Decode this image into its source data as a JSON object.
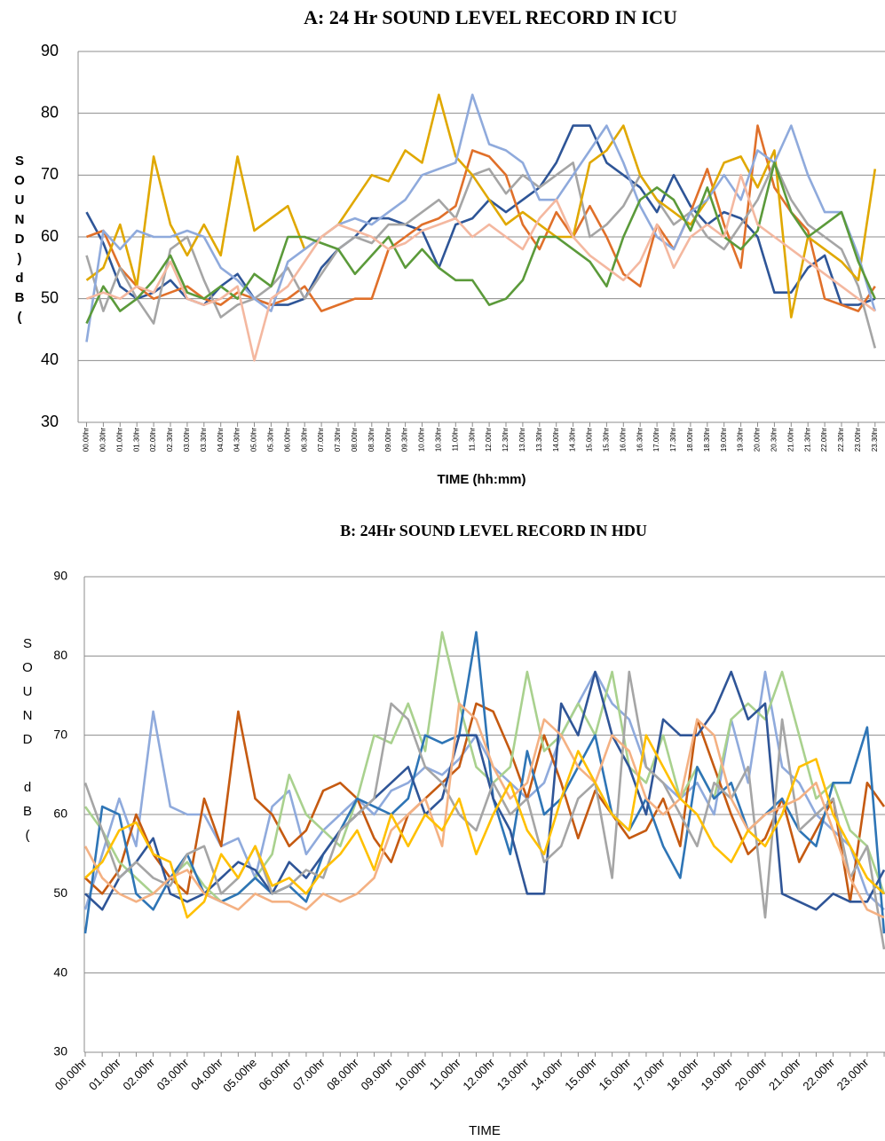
{
  "chart_data": [
    {
      "type": "line",
      "title": "A: 24 Hr  SOUND LEVEL RECORD IN ICU",
      "xlabel": "TIME (hh:mm)",
      "ylabel": "SOUND)dB(",
      "categories": [
        "00.00hr",
        "00.30hr",
        "01.00hr",
        "01.30hr",
        "02.00hr",
        "02.30hr",
        "03.00hr",
        "03.30hr",
        "04.00hr",
        "04.30hr",
        "05.00hr",
        "05.30hr",
        "06.00hr",
        "06.30hr",
        "07.00hr",
        "07.30hr",
        "08.00hr",
        "08.30hr",
        "09.00hr",
        "09.30hr",
        "10.00hr",
        "10.30hr",
        "11.00hr",
        "11.30hr",
        "12.00hr",
        "12.30hr",
        "13.00hr",
        "13.30hr",
        "14.00hr",
        "14.30hr",
        "15.00hr",
        "15.30hr",
        "16.00hr",
        "16.30hr",
        "17.00hr",
        "17.30hr",
        "18.00hr",
        "18.30hr",
        "19.00hr",
        "19.30hr",
        "20.00hr",
        "20.30hr",
        "21.00hr",
        "21.30hr",
        "22.00hr",
        "22.30hr",
        "23.00hr",
        "23.30hr"
      ],
      "ylim": [
        30,
        90
      ],
      "yticks": [
        30,
        40,
        50,
        60,
        70,
        80,
        90
      ],
      "grid": true,
      "series": [
        {
          "color": "#2e5597",
          "values": [
            64,
            59,
            52,
            50,
            51,
            53,
            50,
            49,
            52,
            54,
            50,
            49,
            49,
            50,
            55,
            58,
            60,
            63,
            63,
            62,
            61,
            55,
            62,
            63,
            66,
            64,
            66,
            68,
            72,
            78,
            78,
            72,
            70,
            68,
            64,
            70,
            65,
            62,
            64,
            63,
            60,
            51,
            51,
            55,
            57,
            49,
            49,
            50
          ]
        },
        {
          "color": "#e0702a",
          "values": [
            60,
            61,
            55,
            52,
            50,
            51,
            52,
            50,
            49,
            51,
            50,
            49,
            50,
            52,
            48,
            49,
            50,
            50,
            58,
            60,
            62,
            63,
            65,
            74,
            73,
            70,
            62,
            58,
            64,
            60,
            65,
            60,
            54,
            52,
            62,
            58,
            64,
            71,
            62,
            55,
            78,
            68,
            64,
            61,
            50,
            49,
            48,
            52
          ]
        },
        {
          "color": "#a5a5a5",
          "values": [
            57,
            48,
            55,
            50,
            46,
            58,
            60,
            53,
            47,
            49,
            50,
            52,
            55,
            50,
            54,
            58,
            60,
            59,
            62,
            62,
            64,
            66,
            63,
            70,
            71,
            67,
            70,
            68,
            70,
            72,
            60,
            62,
            65,
            70,
            66,
            62,
            64,
            60,
            58,
            62,
            66,
            72,
            66,
            62,
            60,
            58,
            52,
            42
          ]
        },
        {
          "color": "#e0a800",
          "values": [
            53,
            55,
            62,
            52,
            73,
            62,
            57,
            62,
            57,
            73,
            61,
            63,
            65,
            58,
            60,
            62,
            66,
            70,
            69,
            74,
            72,
            83,
            73,
            70,
            66,
            62,
            64,
            62,
            60,
            60,
            72,
            74,
            78,
            70,
            66,
            64,
            62,
            66,
            72,
            73,
            68,
            74,
            47,
            60,
            58,
            56,
            53,
            71
          ]
        },
        {
          "color": "#8faadc",
          "values": [
            43,
            61,
            58,
            61,
            60,
            60,
            61,
            60,
            55,
            53,
            50,
            48,
            56,
            58,
            60,
            62,
            63,
            62,
            64,
            66,
            70,
            71,
            72,
            83,
            75,
            74,
            72,
            66,
            66,
            70,
            74,
            78,
            72,
            65,
            60,
            58,
            64,
            66,
            70,
            66,
            74,
            72,
            78,
            70,
            64,
            64,
            57,
            48
          ]
        },
        {
          "color": "#5b9a3a",
          "values": [
            46,
            52,
            48,
            50,
            53,
            57,
            51,
            50,
            52,
            50,
            54,
            52,
            60,
            60,
            59,
            58,
            54,
            57,
            60,
            55,
            58,
            55,
            53,
            53,
            49,
            50,
            53,
            60,
            60,
            58,
            56,
            52,
            60,
            66,
            68,
            66,
            61,
            68,
            60,
            58,
            61,
            72,
            64,
            60,
            62,
            64,
            56,
            50
          ]
        },
        {
          "color": "#f4b8a0",
          "values": [
            50,
            51,
            50,
            52,
            51,
            56,
            50,
            49,
            50,
            52,
            40,
            50,
            52,
            56,
            60,
            62,
            61,
            60,
            58,
            59,
            61,
            62,
            63,
            60,
            62,
            60,
            58,
            63,
            66,
            60,
            57,
            55,
            53,
            56,
            62,
            55,
            60,
            62,
            60,
            70,
            62,
            60,
            58,
            56,
            54,
            52,
            50,
            48
          ]
        }
      ]
    },
    {
      "type": "line",
      "title": "B: 24Hr SOUND LEVEL RECORD IN HDU",
      "xlabel": "TIME",
      "ylabel": "SOUND dB(",
      "categories": [
        "00.00hr",
        null,
        "01.00hr",
        null,
        "02.00hr",
        null,
        "03.00hr",
        null,
        "04.00hr",
        null,
        "05.00he",
        null,
        "06.00hr",
        null,
        "07.00hr",
        null,
        "08.00hr",
        null,
        "09.00hr",
        null,
        "10.00hr",
        null,
        "11.00hr",
        null,
        "12.00hr",
        null,
        "13.00hr",
        null,
        "14.00hr",
        null,
        "15.00hr",
        null,
        "16.00hr",
        null,
        "17.00hr",
        null,
        "18.00hr",
        null,
        "19.00hr",
        null,
        "20.00hr",
        null,
        "21.00hr",
        null,
        "22.00hr",
        null,
        "23.00hr",
        null
      ],
      "ylim": [
        30,
        90
      ],
      "yticks": [
        30,
        40,
        50,
        60,
        70,
        80,
        90
      ],
      "grid": true,
      "series": [
        {
          "color": "#8faadc",
          "values": [
            48,
            55,
            62,
            56,
            73,
            61,
            60,
            60,
            56,
            57,
            52,
            61,
            63,
            55,
            58,
            60,
            62,
            60,
            63,
            64,
            66,
            65,
            67,
            70,
            66,
            64,
            62,
            64,
            70,
            74,
            78,
            74,
            72,
            66,
            64,
            62,
            64,
            60,
            72,
            64,
            78,
            66,
            64,
            60,
            58,
            56,
            50,
            48
          ]
        },
        {
          "color": "#c55a11",
          "values": [
            52,
            50,
            53,
            60,
            55,
            52,
            50,
            62,
            56,
            73,
            62,
            60,
            56,
            58,
            63,
            64,
            62,
            57,
            54,
            60,
            62,
            64,
            66,
            74,
            73,
            68,
            62,
            70,
            64,
            57,
            63,
            60,
            57,
            58,
            62,
            56,
            72,
            66,
            60,
            55,
            57,
            62,
            54,
            58,
            62,
            49,
            64,
            61
          ]
        },
        {
          "color": "#a9d18e",
          "values": [
            61,
            58,
            54,
            52,
            50,
            52,
            54,
            51,
            49,
            50,
            52,
            55,
            65,
            60,
            58,
            56,
            62,
            70,
            69,
            74,
            68,
            83,
            74,
            66,
            64,
            66,
            78,
            68,
            70,
            74,
            70,
            78,
            66,
            64,
            70,
            62,
            66,
            62,
            72,
            74,
            72,
            78,
            70,
            62,
            64,
            58,
            56,
            50
          ]
        },
        {
          "color": "#2e75b6",
          "values": [
            45,
            61,
            60,
            50,
            48,
            52,
            55,
            50,
            49,
            50,
            52,
            50,
            51,
            49,
            55,
            58,
            62,
            61,
            60,
            62,
            70,
            69,
            70,
            83,
            62,
            55,
            68,
            60,
            62,
            66,
            70,
            60,
            58,
            62,
            56,
            52,
            66,
            62,
            64,
            58,
            60,
            62,
            58,
            56,
            64,
            64,
            71,
            45
          ]
        },
        {
          "color": "#2f5597",
          "values": [
            50,
            48,
            52,
            54,
            57,
            50,
            49,
            50,
            52,
            54,
            53,
            50,
            54,
            52,
            55,
            58,
            60,
            62,
            64,
            66,
            60,
            62,
            70,
            70,
            62,
            58,
            50,
            50,
            74,
            70,
            78,
            70,
            66,
            60,
            72,
            70,
            70,
            73,
            78,
            72,
            74,
            50,
            49,
            48,
            50,
            49,
            49,
            53
          ]
        },
        {
          "color": "#a5a5a5",
          "values": [
            64,
            58,
            52,
            54,
            52,
            51,
            55,
            56,
            50,
            52,
            56,
            50,
            51,
            53,
            52,
            58,
            60,
            62,
            74,
            72,
            66,
            64,
            60,
            58,
            64,
            60,
            62,
            54,
            56,
            62,
            64,
            52,
            78,
            66,
            64,
            60,
            56,
            64,
            62,
            66,
            47,
            72,
            58,
            60,
            62,
            52,
            56,
            43
          ]
        },
        {
          "color": "#f4b183",
          "values": [
            56,
            52,
            50,
            49,
            50,
            52,
            53,
            50,
            49,
            48,
            50,
            49,
            49,
            48,
            50,
            49,
            50,
            52,
            58,
            60,
            62,
            56,
            74,
            72,
            66,
            62,
            64,
            72,
            70,
            66,
            64,
            70,
            68,
            62,
            60,
            62,
            72,
            70,
            62,
            58,
            60,
            61,
            62,
            64,
            58,
            52,
            48,
            47
          ]
        },
        {
          "color": "#ffc000",
          "values": [
            52,
            54,
            58,
            59,
            55,
            54,
            47,
            49,
            55,
            52,
            56,
            51,
            52,
            50,
            53,
            55,
            58,
            53,
            60,
            56,
            60,
            58,
            62,
            55,
            60,
            64,
            58,
            55,
            62,
            68,
            64,
            60,
            58,
            70,
            66,
            62,
            60,
            56,
            54,
            58,
            56,
            60,
            66,
            67,
            60,
            56,
            52,
            50
          ]
        }
      ]
    }
  ]
}
